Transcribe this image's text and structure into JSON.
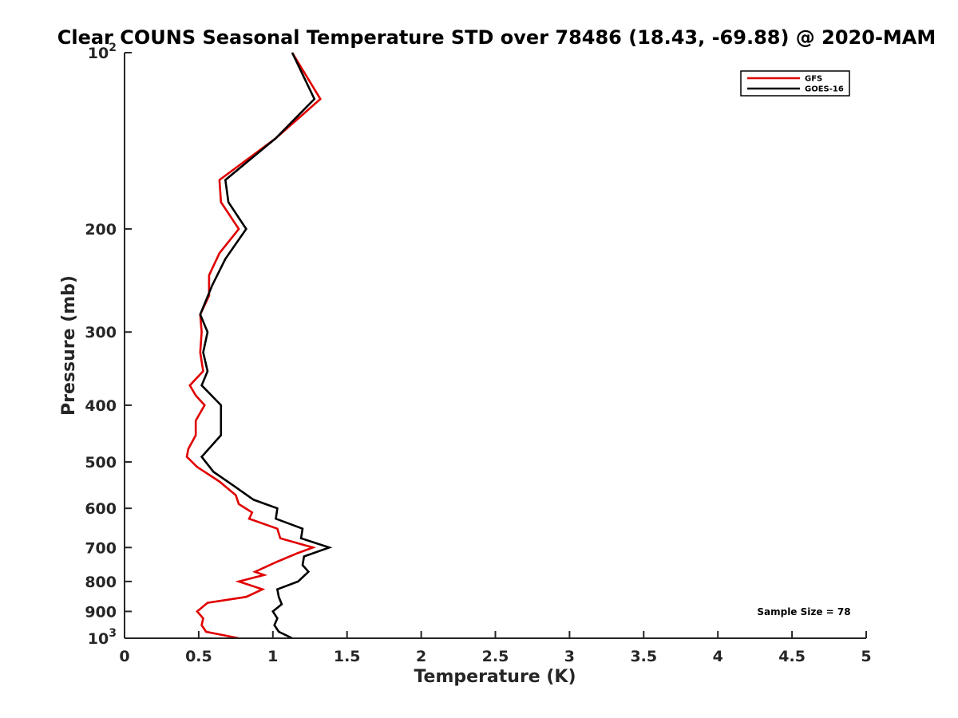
{
  "chart_data": {
    "type": "line",
    "title": "Clear COUNS Seasonal Temperature STD over 78486 (18.43, -69.88) @ 2020-MAM",
    "xlabel": "Temperature (K)",
    "ylabel": "Pressure (mb)",
    "xlim": [
      0,
      5
    ],
    "ylim": [
      100,
      1000
    ],
    "y_scale": "log",
    "y_reversed": true,
    "grid": false,
    "legend_position": "top-right",
    "x_ticks": [
      {
        "value": 0,
        "label": "0"
      },
      {
        "value": 0.5,
        "label": "0.5"
      },
      {
        "value": 1,
        "label": "1"
      },
      {
        "value": 1.5,
        "label": "1.5"
      },
      {
        "value": 2,
        "label": "2"
      },
      {
        "value": 2.5,
        "label": "2.5"
      },
      {
        "value": 3,
        "label": "3"
      },
      {
        "value": 3.5,
        "label": "3.5"
      },
      {
        "value": 4,
        "label": "4"
      },
      {
        "value": 4.5,
        "label": "4.5"
      },
      {
        "value": 5,
        "label": "5"
      }
    ],
    "y_ticks": [
      {
        "value": 100,
        "base": "10",
        "exp": "2"
      },
      {
        "value": 200,
        "label": "200"
      },
      {
        "value": 300,
        "label": "300"
      },
      {
        "value": 400,
        "label": "400"
      },
      {
        "value": 500,
        "label": "500"
      },
      {
        "value": 600,
        "label": "600"
      },
      {
        "value": 700,
        "label": "700"
      },
      {
        "value": 800,
        "label": "800"
      },
      {
        "value": 900,
        "label": "900"
      },
      {
        "value": 1000,
        "base": "10",
        "exp": "3"
      }
    ],
    "annotation": "Sample Size = 78",
    "series": [
      {
        "name": "GFS",
        "color": "#e00000",
        "points": [
          {
            "t": 1.13,
            "p": 100
          },
          {
            "t": 1.32,
            "p": 120
          },
          {
            "t": 1.02,
            "p": 140
          },
          {
            "t": 0.64,
            "p": 165
          },
          {
            "t": 0.65,
            "p": 180
          },
          {
            "t": 0.77,
            "p": 200
          },
          {
            "t": 0.64,
            "p": 220
          },
          {
            "t": 0.57,
            "p": 240
          },
          {
            "t": 0.57,
            "p": 260
          },
          {
            "t": 0.51,
            "p": 280
          },
          {
            "t": 0.52,
            "p": 300
          },
          {
            "t": 0.51,
            "p": 325
          },
          {
            "t": 0.53,
            "p": 350
          },
          {
            "t": 0.44,
            "p": 370
          },
          {
            "t": 0.48,
            "p": 385
          },
          {
            "t": 0.54,
            "p": 400
          },
          {
            "t": 0.48,
            "p": 425
          },
          {
            "t": 0.48,
            "p": 450
          },
          {
            "t": 0.43,
            "p": 475
          },
          {
            "t": 0.42,
            "p": 490
          },
          {
            "t": 0.49,
            "p": 510
          },
          {
            "t": 0.64,
            "p": 540
          },
          {
            "t": 0.75,
            "p": 570
          },
          {
            "t": 0.77,
            "p": 590
          },
          {
            "t": 0.86,
            "p": 610
          },
          {
            "t": 0.84,
            "p": 625
          },
          {
            "t": 1.03,
            "p": 650
          },
          {
            "t": 1.05,
            "p": 675
          },
          {
            "t": 1.27,
            "p": 700
          },
          {
            "t": 1.17,
            "p": 715
          },
          {
            "t": 1.03,
            "p": 740
          },
          {
            "t": 0.88,
            "p": 770
          },
          {
            "t": 0.94,
            "p": 780
          },
          {
            "t": 0.77,
            "p": 800
          },
          {
            "t": 0.93,
            "p": 825
          },
          {
            "t": 0.82,
            "p": 850
          },
          {
            "t": 0.56,
            "p": 870
          },
          {
            "t": 0.49,
            "p": 900
          },
          {
            "t": 0.53,
            "p": 925
          },
          {
            "t": 0.52,
            "p": 950
          },
          {
            "t": 0.55,
            "p": 975
          },
          {
            "t": 0.77,
            "p": 1000
          }
        ]
      },
      {
        "name": "GOES-16",
        "color": "#000000",
        "points": [
          {
            "t": 1.13,
            "p": 100
          },
          {
            "t": 1.28,
            "p": 120
          },
          {
            "t": 1.02,
            "p": 140
          },
          {
            "t": 0.68,
            "p": 165
          },
          {
            "t": 0.7,
            "p": 180
          },
          {
            "t": 0.82,
            "p": 200
          },
          {
            "t": 0.68,
            "p": 225
          },
          {
            "t": 0.59,
            "p": 250
          },
          {
            "t": 0.51,
            "p": 280
          },
          {
            "t": 0.56,
            "p": 300
          },
          {
            "t": 0.53,
            "p": 325
          },
          {
            "t": 0.56,
            "p": 350
          },
          {
            "t": 0.52,
            "p": 370
          },
          {
            "t": 0.65,
            "p": 400
          },
          {
            "t": 0.65,
            "p": 450
          },
          {
            "t": 0.52,
            "p": 490
          },
          {
            "t": 0.6,
            "p": 520
          },
          {
            "t": 0.74,
            "p": 550
          },
          {
            "t": 0.87,
            "p": 580
          },
          {
            "t": 1.03,
            "p": 600
          },
          {
            "t": 1.02,
            "p": 625
          },
          {
            "t": 1.2,
            "p": 650
          },
          {
            "t": 1.19,
            "p": 675
          },
          {
            "t": 1.38,
            "p": 700
          },
          {
            "t": 1.21,
            "p": 725
          },
          {
            "t": 1.2,
            "p": 750
          },
          {
            "t": 1.24,
            "p": 770
          },
          {
            "t": 1.17,
            "p": 800
          },
          {
            "t": 1.03,
            "p": 825
          },
          {
            "t": 1.04,
            "p": 850
          },
          {
            "t": 1.06,
            "p": 875
          },
          {
            "t": 1.0,
            "p": 900
          },
          {
            "t": 1.03,
            "p": 925
          },
          {
            "t": 1.01,
            "p": 950
          },
          {
            "t": 1.04,
            "p": 975
          },
          {
            "t": 1.13,
            "p": 1000
          }
        ]
      }
    ]
  }
}
